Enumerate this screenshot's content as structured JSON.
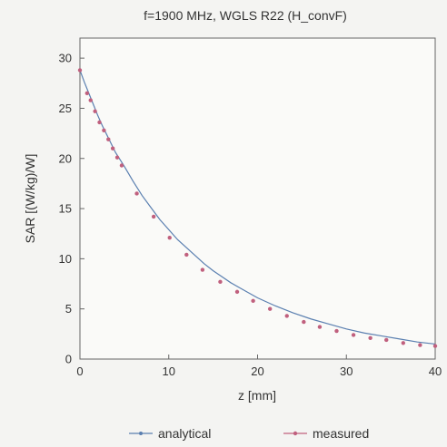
{
  "chart_data": {
    "type": "line",
    "title": "f=1900 MHz, WGLS R22 (H_convF)",
    "xlabel": "z [mm]",
    "ylabel": "SAR [(W/kg)/W]",
    "xlim": [
      0,
      40
    ],
    "ylim": [
      0,
      32
    ],
    "xticks": [
      0,
      10,
      20,
      30,
      40
    ],
    "yticks": [
      0,
      5,
      10,
      15,
      20,
      25,
      30
    ],
    "grid": false,
    "legend_position": "bottom",
    "series": [
      {
        "name": "analytical",
        "style": "line",
        "color": "#5a7fb0",
        "x": [
          0,
          0.5,
          1,
          1.5,
          2,
          2.5,
          3,
          3.5,
          4,
          4.5,
          5,
          6,
          7,
          8,
          9,
          10,
          11,
          12,
          13,
          14,
          15,
          16,
          17,
          18,
          19,
          20,
          22,
          24,
          26,
          28,
          30,
          32,
          34,
          36,
          38,
          40
        ],
        "y": [
          28.8,
          27.6,
          26.5,
          25.4,
          24.3,
          23.3,
          22.4,
          21.5,
          20.6,
          19.9,
          19.2,
          17.7,
          16.3,
          15.1,
          13.9,
          12.9,
          11.9,
          11.1,
          10.3,
          9.5,
          8.8,
          8.2,
          7.6,
          7.1,
          6.6,
          6.1,
          5.3,
          4.6,
          4.0,
          3.5,
          3.0,
          2.6,
          2.3,
          2.0,
          1.7,
          1.5
        ]
      },
      {
        "name": "measured",
        "style": "markers",
        "color": "#c0607e",
        "x": [
          0,
          0.8,
          1.2,
          1.7,
          2.2,
          2.7,
          3.2,
          3.7,
          4.2,
          4.7,
          6.4,
          8.3,
          10.1,
          12.0,
          13.8,
          15.8,
          17.7,
          19.5,
          21.4,
          23.3,
          25.2,
          27.0,
          28.9,
          30.8,
          32.7,
          34.5,
          36.4,
          38.3,
          40.0
        ],
        "y": [
          28.8,
          26.5,
          25.8,
          24.7,
          23.6,
          22.8,
          21.9,
          21.0,
          20.1,
          19.3,
          16.5,
          14.2,
          12.1,
          10.4,
          8.9,
          7.7,
          6.7,
          5.8,
          5.0,
          4.3,
          3.7,
          3.2,
          2.8,
          2.4,
          2.1,
          1.9,
          1.6,
          1.4,
          1.3
        ]
      }
    ]
  }
}
